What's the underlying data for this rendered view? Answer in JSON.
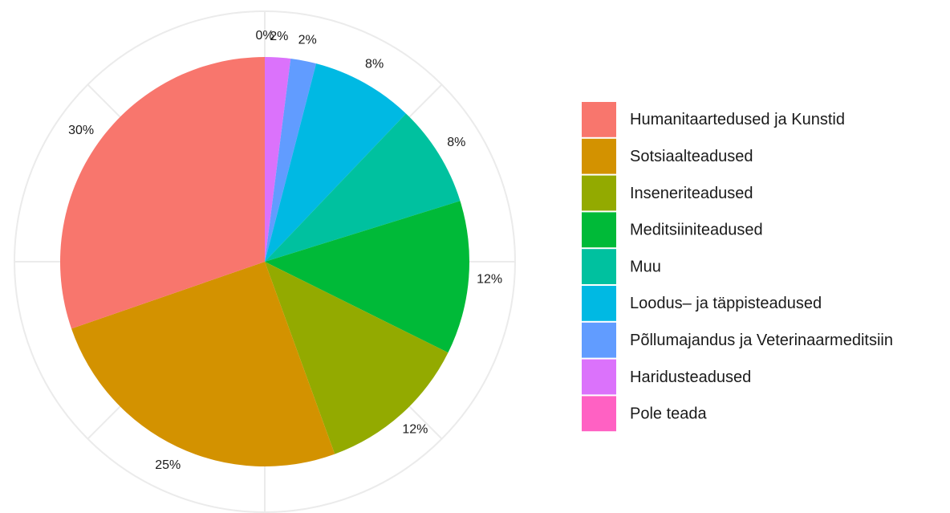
{
  "chart_data": {
    "type": "pie",
    "categories": [
      "Humanitaartedused ja Kunstid",
      "Sotsiaalteadused",
      "Inseneriteadused",
      "Meditsiiniteadused",
      "Muu",
      "Loodus– ja täppisteadused",
      "Põllumajandus ja Veterinaarmeditsiin",
      "Haridusteadused",
      "Pole teada"
    ],
    "values": [
      30,
      25,
      12,
      12,
      8,
      8,
      2,
      2,
      0
    ],
    "value_labels": [
      "30%",
      "25%",
      "12%",
      "12%",
      "8%",
      "8%",
      "2%",
      "2%",
      "0%"
    ],
    "colors": [
      "#F8766D",
      "#D39200",
      "#93AA00",
      "#00BA38",
      "#00C19F",
      "#00B9E3",
      "#619CFF",
      "#DB72FB",
      "#FF61C3"
    ],
    "legend": "right"
  }
}
